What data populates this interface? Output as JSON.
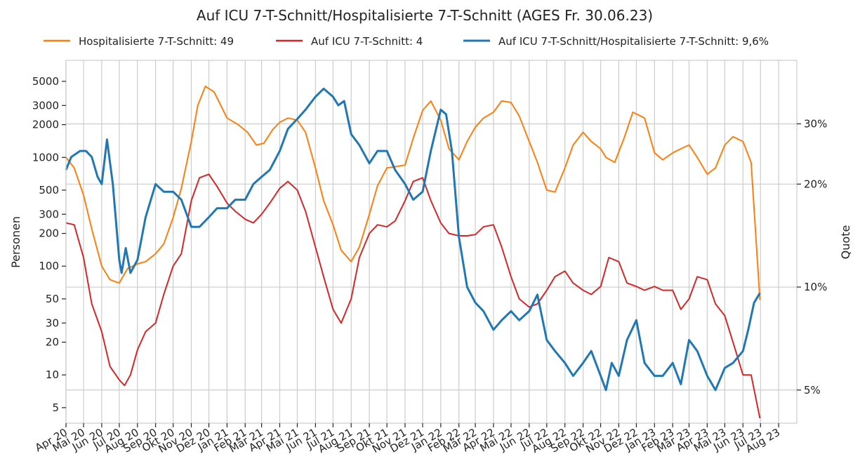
{
  "chart_data": {
    "type": "line",
    "title": "Auf ICU 7-T-Schnitt/Hospitalisierte 7-T-Schnitt (AGES Fr. 30.06.23)",
    "ylabel_left": "Personen",
    "ylabel_right": "Quote",
    "y_left_scale": "log",
    "y_left_range": [
      3.6,
      7800
    ],
    "y_left_ticks": [
      5,
      10,
      20,
      30,
      50,
      100,
      200,
      300,
      500,
      1000,
      2000,
      3000,
      5000
    ],
    "y_left_tick_labels": [
      "5",
      "10",
      "20",
      "30",
      "50",
      "100",
      "200",
      "300",
      "500",
      "1000",
      "2000",
      "3000",
      "5000"
    ],
    "y_right_scale": "log",
    "y_right_range": [
      4.0,
      46.0
    ],
    "y_right_ticks": [
      5,
      10,
      20,
      30
    ],
    "y_right_tick_labels": [
      "5%",
      "10%",
      "20%",
      "30%"
    ],
    "x_range": [
      "2020-04-01",
      "2023-09-01"
    ],
    "x_tick_labels": [
      "Apr 20",
      "Mai 20",
      "Jun 20",
      "Jul 20",
      "Aug 20",
      "Sep 20",
      "Okt 20",
      "Nov 20",
      "Dez 20",
      "Jan 21",
      "Feb 21",
      "Mär 21",
      "Apr 21",
      "Mai 21",
      "Jun 21",
      "Jul 21",
      "Aug 21",
      "Sep 21",
      "Okt 21",
      "Nov 21",
      "Dez 21",
      "Jan 22",
      "Feb 22",
      "Mär 22",
      "Apr 22",
      "Mai 22",
      "Jun 22",
      "Jul 22",
      "Aug 22",
      "Sep 22",
      "Okt 22",
      "Nov 22",
      "Dez 22",
      "Jan 23",
      "Feb 23",
      "Mär 23",
      "Apr 23",
      "Mai 23",
      "Jun 23",
      "Jul 23",
      "Aug 23"
    ],
    "grid": true,
    "legend_position": "top",
    "series": [
      {
        "name": "Hospitalisierte 7-T-Schnitt: 49",
        "color": "#ff7f0e",
        "axis": "left",
        "x": [
          "2020-04-01",
          "2020-04-15",
          "2020-05-01",
          "2020-05-15",
          "2020-06-01",
          "2020-06-15",
          "2020-07-01",
          "2020-07-15",
          "2020-08-01",
          "2020-08-15",
          "2020-09-01",
          "2020-09-15",
          "2020-10-01",
          "2020-10-15",
          "2020-11-01",
          "2020-11-12",
          "2020-11-25",
          "2020-12-10",
          "2021-01-01",
          "2021-01-20",
          "2021-02-05",
          "2021-02-20",
          "2021-03-05",
          "2021-03-20",
          "2021-04-01",
          "2021-04-15",
          "2021-05-01",
          "2021-05-15",
          "2021-06-01",
          "2021-06-15",
          "2021-07-01",
          "2021-07-15",
          "2021-08-01",
          "2021-08-15",
          "2021-09-01",
          "2021-09-15",
          "2021-10-01",
          "2021-10-15",
          "2021-11-01",
          "2021-11-15",
          "2021-12-01",
          "2021-12-15",
          "2022-01-01",
          "2022-01-15",
          "2022-02-01",
          "2022-02-15",
          "2022-03-01",
          "2022-03-15",
          "2022-04-01",
          "2022-04-15",
          "2022-05-01",
          "2022-05-15",
          "2022-06-01",
          "2022-06-15",
          "2022-07-01",
          "2022-07-15",
          "2022-08-01",
          "2022-08-15",
          "2022-09-01",
          "2022-09-15",
          "2022-10-01",
          "2022-10-10",
          "2022-10-25",
          "2022-11-10",
          "2022-11-25",
          "2022-12-15",
          "2023-01-01",
          "2023-01-15",
          "2023-02-01",
          "2023-02-15",
          "2023-03-01",
          "2023-03-15",
          "2023-04-01",
          "2023-04-15",
          "2023-05-01",
          "2023-05-15",
          "2023-06-01",
          "2023-06-15",
          "2023-06-30"
        ],
        "y": [
          1000,
          800,
          450,
          220,
          100,
          75,
          70,
          95,
          105,
          110,
          130,
          160,
          280,
          520,
          1400,
          3000,
          4500,
          4000,
          2300,
          2000,
          1700,
          1300,
          1350,
          1800,
          2100,
          2300,
          2200,
          1700,
          800,
          400,
          240,
          140,
          110,
          150,
          300,
          550,
          800,
          820,
          850,
          1500,
          2700,
          3300,
          2200,
          1200,
          950,
          1400,
          1900,
          2300,
          2600,
          3300,
          3200,
          2400,
          1400,
          900,
          500,
          480,
          800,
          1300,
          1700,
          1400,
          1200,
          1000,
          900,
          1500,
          2600,
          2300,
          1100,
          950,
          1100,
          1200,
          1300,
          1000,
          700,
          800,
          1300,
          1550,
          1400,
          900,
          49
        ]
      },
      {
        "name": "Auf ICU 7-T-Schnitt: 4",
        "color": "#d62728",
        "axis": "left",
        "x": [
          "2020-04-01",
          "2020-04-15",
          "2020-05-01",
          "2020-05-15",
          "2020-06-01",
          "2020-06-15",
          "2020-07-01",
          "2020-07-10",
          "2020-07-20",
          "2020-08-01",
          "2020-08-15",
          "2020-09-01",
          "2020-09-15",
          "2020-10-01",
          "2020-10-15",
          "2020-11-01",
          "2020-11-15",
          "2020-12-01",
          "2020-12-15",
          "2021-01-01",
          "2021-01-15",
          "2021-02-01",
          "2021-02-15",
          "2021-03-01",
          "2021-03-15",
          "2021-04-01",
          "2021-04-15",
          "2021-05-01",
          "2021-05-15",
          "2021-06-01",
          "2021-06-15",
          "2021-07-01",
          "2021-07-15",
          "2021-08-01",
          "2021-08-15",
          "2021-09-01",
          "2021-09-15",
          "2021-10-01",
          "2021-10-15",
          "2021-11-01",
          "2021-11-15",
          "2021-12-01",
          "2021-12-15",
          "2022-01-01",
          "2022-01-15",
          "2022-02-01",
          "2022-02-15",
          "2022-03-01",
          "2022-03-15",
          "2022-04-01",
          "2022-04-15",
          "2022-05-01",
          "2022-05-15",
          "2022-06-01",
          "2022-06-15",
          "2022-07-01",
          "2022-07-15",
          "2022-08-01",
          "2022-08-15",
          "2022-09-01",
          "2022-09-15",
          "2022-10-01",
          "2022-10-15",
          "2022-11-01",
          "2022-11-15",
          "2022-12-01",
          "2022-12-15",
          "2023-01-01",
          "2023-01-15",
          "2023-02-01",
          "2023-02-15",
          "2023-03-01",
          "2023-03-15",
          "2023-04-01",
          "2023-04-15",
          "2023-05-01",
          "2023-05-15",
          "2023-06-01",
          "2023-06-15",
          "2023-06-30"
        ],
        "y": [
          250,
          240,
          120,
          45,
          25,
          12,
          9,
          8,
          10,
          17,
          25,
          30,
          55,
          100,
          130,
          400,
          650,
          700,
          540,
          380,
          320,
          270,
          250,
          300,
          380,
          520,
          600,
          500,
          320,
          150,
          80,
          40,
          30,
          50,
          120,
          200,
          240,
          230,
          260,
          400,
          600,
          650,
          400,
          250,
          200,
          190,
          190,
          195,
          230,
          240,
          150,
          80,
          50,
          42,
          45,
          60,
          80,
          90,
          70,
          60,
          55,
          65,
          120,
          110,
          70,
          65,
          60,
          65,
          60,
          60,
          40,
          50,
          80,
          75,
          45,
          35,
          20,
          10,
          10,
          4
        ]
      },
      {
        "name": "Auf ICU 7-T-Schnitt/Hospitalisierte 7-T-Schnitt: 9,6%",
        "color": "#1f77b4",
        "axis": "right",
        "x": [
          "2020-04-01",
          "2020-04-10",
          "2020-04-25",
          "2020-05-05",
          "2020-05-15",
          "2020-05-25",
          "2020-06-01",
          "2020-06-10",
          "2020-06-20",
          "2020-07-01",
          "2020-07-05",
          "2020-07-12",
          "2020-07-20",
          "2020-08-01",
          "2020-08-15",
          "2020-09-01",
          "2020-09-15",
          "2020-10-01",
          "2020-10-15",
          "2020-11-01",
          "2020-11-15",
          "2020-12-01",
          "2020-12-15",
          "2021-01-01",
          "2021-01-15",
          "2021-02-01",
          "2021-02-15",
          "2021-03-01",
          "2021-03-15",
          "2021-04-01",
          "2021-04-15",
          "2021-05-01",
          "2021-05-15",
          "2021-06-01",
          "2021-06-15",
          "2021-07-01",
          "2021-07-10",
          "2021-07-20",
          "2021-08-01",
          "2021-08-15",
          "2021-09-01",
          "2021-09-15",
          "2021-10-01",
          "2021-10-15",
          "2021-11-01",
          "2021-11-15",
          "2021-12-01",
          "2021-12-15",
          "2022-01-01",
          "2022-01-10",
          "2022-01-20",
          "2022-02-01",
          "2022-02-15",
          "2022-03-01",
          "2022-03-15",
          "2022-04-01",
          "2022-04-15",
          "2022-05-01",
          "2022-05-15",
          "2022-06-01",
          "2022-06-15",
          "2022-07-01",
          "2022-07-15",
          "2022-08-01",
          "2022-08-15",
          "2022-09-01",
          "2022-09-15",
          "2022-10-01",
          "2022-10-10",
          "2022-10-20",
          "2022-11-01",
          "2022-11-15",
          "2022-12-01",
          "2022-12-15",
          "2023-01-01",
          "2023-01-15",
          "2023-02-01",
          "2023-02-15",
          "2023-03-01",
          "2023-03-15",
          "2023-04-01",
          "2023-04-15",
          "2023-05-01",
          "2023-05-15",
          "2023-06-01",
          "2023-06-10",
          "2023-06-20",
          "2023-06-30"
        ],
        "y": [
          22,
          24,
          25,
          25,
          24,
          21,
          20,
          27,
          20,
          12,
          11,
          13,
          11,
          12,
          16,
          20,
          19,
          19,
          18,
          15,
          15,
          16,
          17,
          17,
          18,
          18,
          20,
          21,
          22,
          25,
          29,
          31,
          33,
          36,
          38,
          36,
          34,
          35,
          28,
          26,
          23,
          25,
          25,
          22,
          20,
          18,
          19,
          25,
          33,
          32,
          25,
          14,
          10,
          9,
          8.5,
          7.5,
          8,
          8.5,
          8,
          8.5,
          9.5,
          7,
          6.5,
          6,
          5.5,
          6,
          6.5,
          5.5,
          5,
          6,
          5.5,
          7,
          8,
          6,
          5.5,
          5.5,
          6,
          5.2,
          7,
          6.5,
          5.5,
          5,
          5.8,
          6,
          6.5,
          7.5,
          9,
          9.6
        ]
      }
    ]
  }
}
